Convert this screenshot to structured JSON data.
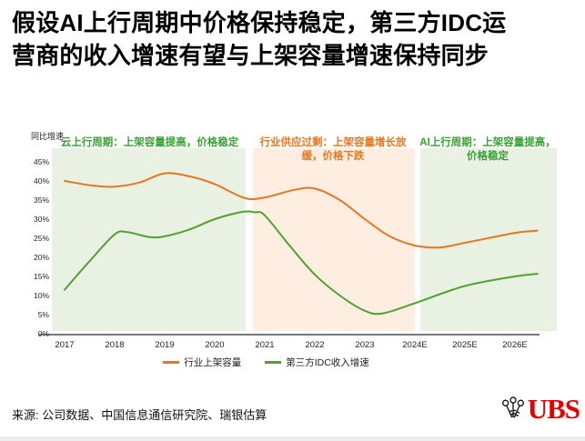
{
  "page": {
    "title": "假设AI上行周期中价格保持稳定，第三方IDC运营商的收入增速有望与上架容量增速保持同步",
    "source": "来源: 公司数据、中国信息通信研究院、瑞银估算",
    "brand": "UBS"
  },
  "chart_data": {
    "type": "line",
    "title": "",
    "y_axis_label": "同比增速",
    "ylim": [
      0,
      45
    ],
    "y_ticks": [
      "45%",
      "40%",
      "35%",
      "30%",
      "25%",
      "20%",
      "15%",
      "10%",
      "5%",
      "0%"
    ],
    "categories": [
      "2017",
      "2018",
      "2019",
      "2020",
      "2021",
      "2022",
      "2023",
      "2024E",
      "2025E",
      "2026E"
    ],
    "grid": false,
    "legend_position": "bottom",
    "regions": [
      {
        "label": "云上行周期：上架容量提高，价格稳定",
        "bg": "#e8f1e2",
        "text_color": "#3aa135",
        "t_range": [
          -0.25,
          3.65
        ],
        "label_width": 205
      },
      {
        "label": "行业供应过剩：上架容量增长放缓，价格下跌",
        "bg": "#fdeee1",
        "text_color": "#e87722",
        "t_range": [
          3.73,
          7.0
        ],
        "label_width": 176
      },
      {
        "label": "AI上行周期：上架容量提高，价格稳定",
        "bg": "#e8f1e2",
        "text_color": "#3aa135",
        "t_range": [
          7.07,
          9.84
        ],
        "label_width": 152
      }
    ],
    "series": [
      {
        "name": "行业上架容量",
        "color": "#e87722",
        "values": [
          40,
          38.5,
          42,
          39,
          35.5,
          38,
          30,
          23,
          24,
          26.5
        ],
        "curve": [
          [
            0,
            40
          ],
          [
            0.55,
            38.8
          ],
          [
            1,
            38.5
          ],
          [
            1.5,
            39.6
          ],
          [
            2,
            42
          ],
          [
            2.5,
            41.2
          ],
          [
            3,
            39.2
          ],
          [
            3.6,
            35.5
          ],
          [
            4,
            35.7
          ],
          [
            4.6,
            37.7
          ],
          [
            5,
            38
          ],
          [
            5.5,
            35
          ],
          [
            6,
            30
          ],
          [
            6.5,
            25.5
          ],
          [
            7,
            23.1
          ],
          [
            7.5,
            22.6
          ],
          [
            8,
            23.8
          ],
          [
            9,
            26.4
          ],
          [
            9.45,
            27
          ]
        ]
      },
      {
        "name": "第三方IDC收入增速",
        "color": "#4fa32e",
        "values": [
          11.5,
          26,
          25.5,
          30,
          31,
          15.5,
          6,
          8,
          12.5,
          15
        ],
        "curve": [
          [
            0,
            11.5
          ],
          [
            0.5,
            19
          ],
          [
            1,
            26
          ],
          [
            1.25,
            26.6
          ],
          [
            1.7,
            25.3
          ],
          [
            2,
            25.5
          ],
          [
            2.5,
            27.3
          ],
          [
            3,
            30
          ],
          [
            3.55,
            31.9
          ],
          [
            3.8,
            31.8
          ],
          [
            4,
            31
          ],
          [
            4.5,
            23
          ],
          [
            5,
            15.5
          ],
          [
            5.5,
            10
          ],
          [
            6,
            6
          ],
          [
            6.35,
            5.3
          ],
          [
            7,
            8
          ],
          [
            8,
            12.5
          ],
          [
            9,
            15
          ],
          [
            9.45,
            15.7
          ]
        ]
      }
    ]
  }
}
